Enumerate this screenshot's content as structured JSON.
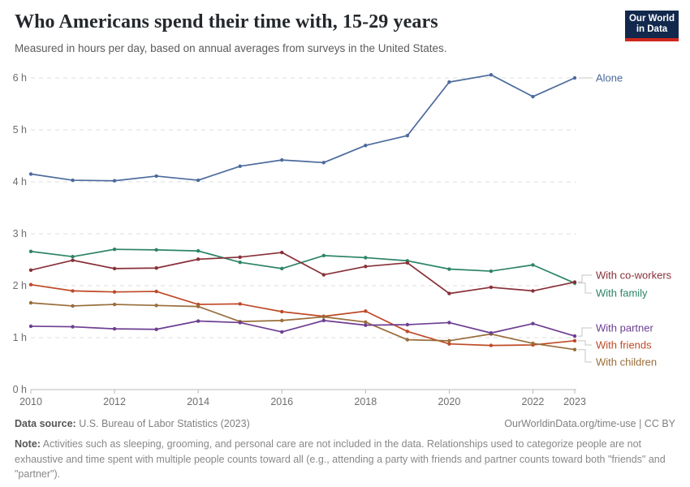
{
  "header": {
    "title": "Who Americans spend their time with, 15-29 years",
    "subtitle": "Measured in hours per day, based on annual averages from surveys in the United States.",
    "logo_line1": "Our World",
    "logo_line2": "in Data"
  },
  "chart_data": {
    "type": "line",
    "title": "Who Americans spend their time with, 15-29 years",
    "xlabel": "",
    "ylabel": "hours per day",
    "ylim": [
      0,
      6
    ],
    "grid": "horizontal-dashed",
    "legend_position": "right-edge-labels",
    "x": [
      2010,
      2011,
      2012,
      2013,
      2014,
      2015,
      2016,
      2017,
      2018,
      2019,
      2020,
      2021,
      2022,
      2023
    ],
    "xticks": [
      2010,
      2012,
      2014,
      2016,
      2018,
      2020,
      2022,
      2023
    ],
    "yticks": [
      "0 h",
      "1 h",
      "2 h",
      "3 h",
      "4 h",
      "5 h",
      "6 h"
    ],
    "series": [
      {
        "name": "With friends",
        "color": "#be4a27",
        "values": [
          2.02,
          1.9,
          1.88,
          1.89,
          1.64,
          1.65,
          1.5,
          1.41,
          1.51,
          1.12,
          0.88,
          0.85,
          0.86,
          0.94
        ]
      },
      {
        "name": "With children",
        "color": "#996d39",
        "values": [
          1.67,
          1.61,
          1.64,
          1.62,
          1.6,
          1.31,
          1.33,
          1.4,
          1.3,
          0.96,
          0.94,
          1.07,
          0.89,
          0.77
        ]
      },
      {
        "name": "With partner",
        "color": "#6d3e91",
        "values": [
          1.22,
          1.21,
          1.17,
          1.16,
          1.32,
          1.29,
          1.11,
          1.33,
          1.24,
          1.25,
          1.29,
          1.09,
          1.27,
          1.03
        ]
      },
      {
        "name": "With family",
        "color": "#2c8465",
        "values": [
          2.66,
          2.56,
          2.7,
          2.69,
          2.67,
          2.45,
          2.33,
          2.58,
          2.54,
          2.48,
          2.32,
          2.28,
          2.4,
          2.05
        ]
      },
      {
        "name": "With co-workers",
        "color": "#883039",
        "values": [
          2.3,
          2.49,
          2.33,
          2.34,
          2.51,
          2.55,
          2.64,
          2.21,
          2.37,
          2.44,
          1.85,
          1.97,
          1.9,
          2.07
        ]
      },
      {
        "name": "Alone",
        "color": "#4c6a9c",
        "values": [
          4.15,
          4.03,
          4.02,
          4.11,
          4.03,
          4.3,
          4.42,
          4.37,
          4.7,
          4.89,
          5.92,
          6.06,
          5.64,
          6.0
        ]
      }
    ]
  },
  "footer": {
    "source_label": "Data source:",
    "source_text": " U.S. Bureau of Labor Statistics (2023)",
    "attribution": "OurWorldinData.org/time-use | CC BY",
    "note_label": "Note:",
    "note_text": " Activities such as sleeping, grooming, and personal care are not included in the data. Relationships used to categorize people are not exhaustive and time spent with multiple people counts toward all (e.g., attending a party with friends and partner counts toward both \"friends\" and \"partner\")."
  }
}
